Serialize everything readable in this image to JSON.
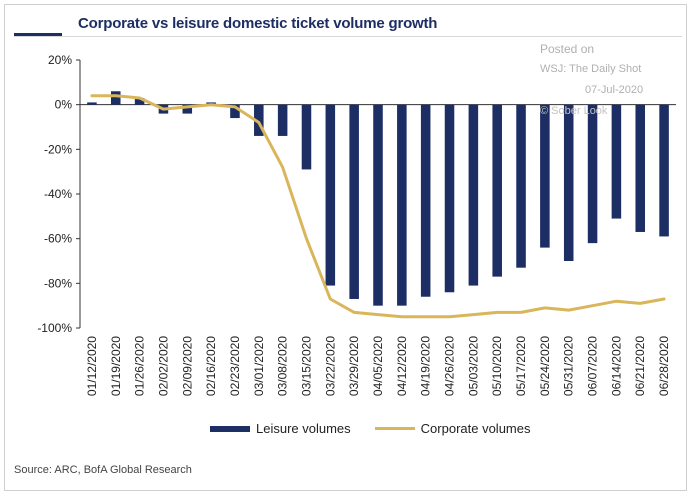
{
  "chart_data": {
    "type": "bar",
    "title": "Corporate vs leisure domestic ticket volume growth",
    "categories": [
      "01/12/2020",
      "01/19/2020",
      "01/26/2020",
      "02/02/2020",
      "02/09/2020",
      "02/16/2020",
      "02/23/2020",
      "03/01/2020",
      "03/08/2020",
      "03/15/2020",
      "03/22/2020",
      "03/29/2020",
      "04/05/2020",
      "04/12/2020",
      "04/19/2020",
      "04/26/2020",
      "05/03/2020",
      "05/10/2020",
      "05/17/2020",
      "05/24/2020",
      "05/31/2020",
      "06/07/2020",
      "06/14/2020",
      "06/21/2020",
      "06/28/2020"
    ],
    "y_ticks": [
      "20%",
      "0%",
      "-20%",
      "-40%",
      "-60%",
      "-80%",
      "-100%"
    ],
    "ylim": [
      -100,
      20
    ],
    "series": [
      {
        "name": "Leisure volumes",
        "type": "bar",
        "color": "#1c2e63",
        "values": [
          1,
          6,
          3,
          -4,
          -4,
          1,
          -6,
          -14,
          -14,
          -29,
          -81,
          -87,
          -90,
          -90,
          -86,
          -84,
          -81,
          -77,
          -73,
          -64,
          -70,
          -62,
          -51,
          -57,
          -59
        ]
      },
      {
        "name": "Corporate volumes",
        "type": "line",
        "color": "#d9b65a",
        "values": [
          4,
          4,
          3,
          -2,
          -1,
          0,
          -1,
          -8,
          -28,
          -60,
          -87,
          -93,
          -94,
          -95,
          -95,
          -95,
          -94,
          -93,
          -93,
          -91,
          -92,
          -90,
          -88,
          -89,
          -87
        ]
      }
    ],
    "legend_position": "bottom",
    "grid": false
  },
  "watermark": {
    "line1": "Posted on",
    "line2": "WSJ: The Daily Shot",
    "line3": "07-Jul-2020",
    "line4": "© Sober Look"
  },
  "legend": {
    "leisure": "Leisure volumes",
    "corporate": "Corporate volumes"
  },
  "source": "Source: ARC, BofA Global Research"
}
